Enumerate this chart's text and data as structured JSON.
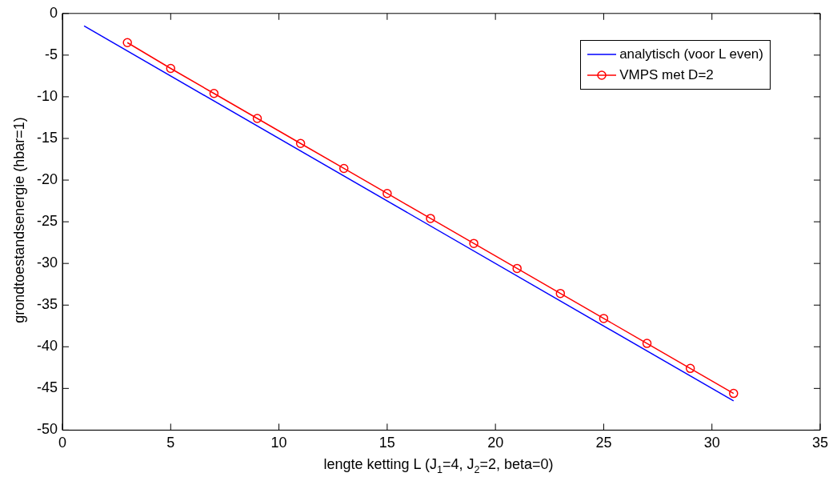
{
  "chart_data": {
    "type": "line",
    "xlabel": "lengte ketting L (J$_{1}$=4, J$_{2}$=2, beta=0)",
    "ylabel": "grondtoestandsenergie (hbar=1)",
    "xlim": [
      0,
      35
    ],
    "xticks": [
      0,
      5,
      10,
      15,
      20,
      25,
      30,
      35
    ],
    "ylim": [
      -50,
      0
    ],
    "yticks": [
      -50,
      -45,
      -40,
      -35,
      -30,
      -25,
      -20,
      -15,
      -10,
      -5,
      0
    ],
    "grid": false,
    "legend": "top right",
    "series": [
      {
        "name": "analytisch (voor L even)",
        "color": "#0000ff",
        "x": [
          1,
          31
        ],
        "values": [
          -1.5,
          -46.5
        ],
        "marker": "none"
      },
      {
        "name": "VMPS met D=2",
        "color": "#ff0000",
        "x": [
          3,
          5,
          7,
          9,
          11,
          13,
          15,
          17,
          19,
          21,
          23,
          25,
          27,
          29,
          31
        ],
        "values": [
          -3.5,
          -6.6,
          -9.6,
          -12.6,
          -15.6,
          -18.6,
          -21.6,
          -24.6,
          -27.6,
          -30.6,
          -33.6,
          -36.6,
          -39.6,
          -42.6,
          -45.6
        ],
        "marker": "circle"
      }
    ]
  }
}
